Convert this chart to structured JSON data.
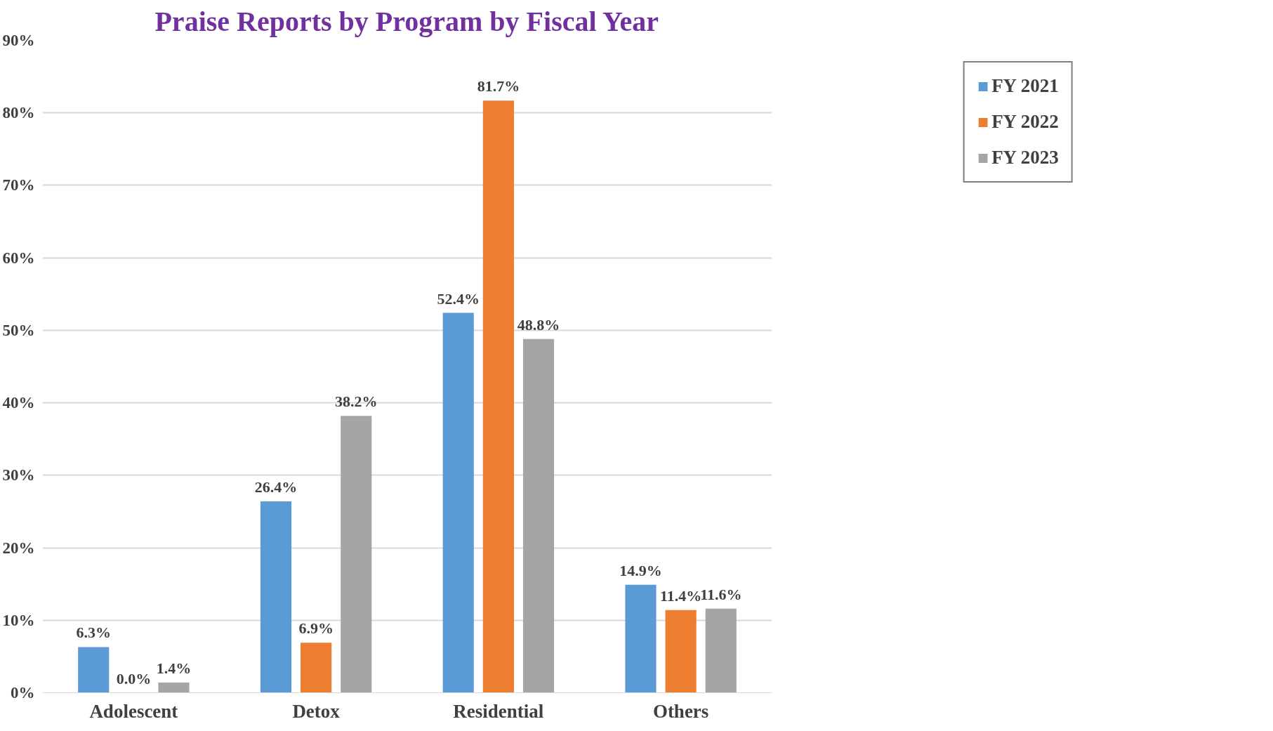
{
  "chart_data": {
    "type": "bar",
    "title": "Praise Reports by Program by Fiscal Year",
    "categories": [
      "Adolescent",
      "Detox",
      "Residential",
      "Others"
    ],
    "series": [
      {
        "name": "FY 2021",
        "color": "#5b9bd5",
        "values": [
          6.3,
          26.4,
          52.4,
          14.9
        ],
        "value_labels": [
          "6.3%",
          "26.4%",
          "52.4%",
          "14.9%"
        ]
      },
      {
        "name": "FY 2022",
        "color": "#ed7d31",
        "values": [
          0.0,
          6.9,
          81.7,
          11.4
        ],
        "value_labels": [
          "0.0%",
          "6.9%",
          "81.7%",
          "11.4%"
        ]
      },
      {
        "name": "FY 2023",
        "color": "#a5a5a5",
        "values": [
          1.4,
          38.2,
          48.8,
          11.6
        ],
        "value_labels": [
          "1.4%",
          "38.2%",
          "48.8%",
          "11.6%"
        ]
      }
    ],
    "ylim": [
      0,
      90
    ],
    "yticks": [
      {
        "value": 0,
        "label": "0%"
      },
      {
        "value": 10,
        "label": "10%"
      },
      {
        "value": 20,
        "label": "20%"
      },
      {
        "value": 30,
        "label": "30%"
      },
      {
        "value": 40,
        "label": "40%"
      },
      {
        "value": 50,
        "label": "50%"
      },
      {
        "value": 60,
        "label": "60%"
      },
      {
        "value": 70,
        "label": "70%"
      },
      {
        "value": 80,
        "label": "80%"
      },
      {
        "value": 90,
        "label": "90%"
      }
    ],
    "grid": "y",
    "legend": "right"
  }
}
